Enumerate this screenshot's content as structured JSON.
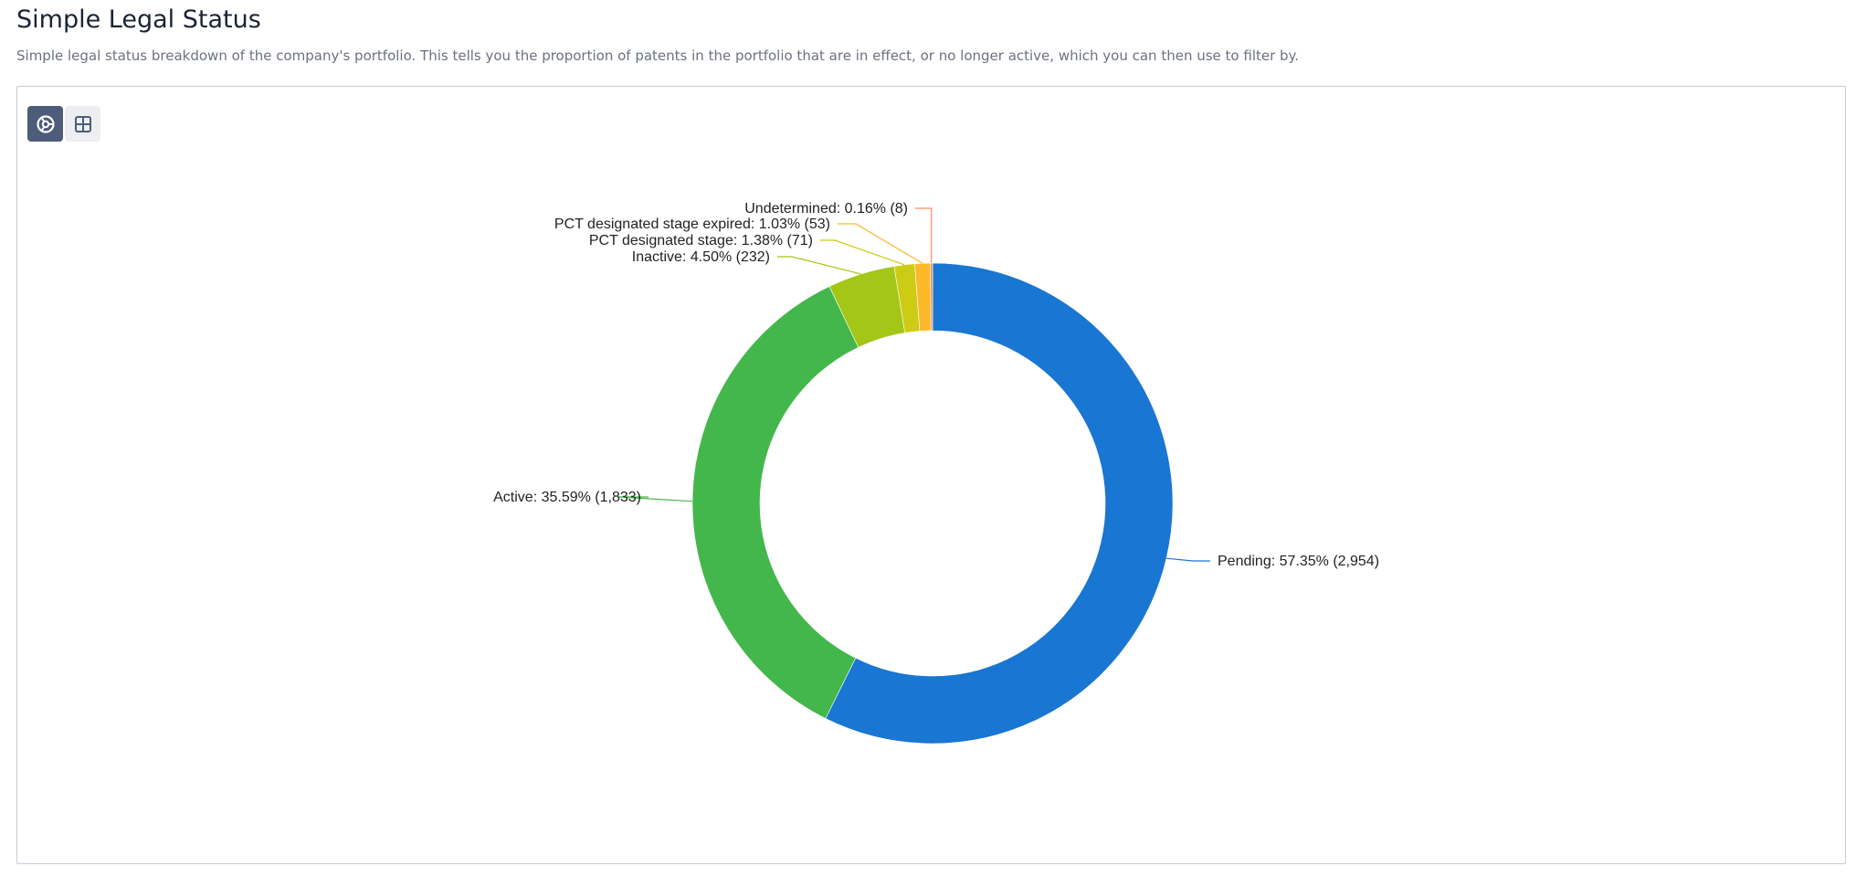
{
  "header": {
    "title": "Simple Legal Status",
    "subtitle": "Simple legal status breakdown of the company's portfolio. This tells you the proportion of patents in the portfolio that are in effect, or no longer active, which you can then use to filter by."
  },
  "view_toggle": {
    "active": "donut",
    "buttons": [
      {
        "name": "donut-view",
        "icon": "donut-chart-icon"
      },
      {
        "name": "table-view",
        "icon": "grid-table-icon"
      }
    ]
  },
  "chart_data": {
    "type": "pie",
    "variant": "donut",
    "start": "top, clockwise",
    "slices": [
      {
        "name": "Pending",
        "percent": 57.35,
        "count": 2954,
        "label": "Pending: 57.35% (2,954)",
        "color": "#1976d2"
      },
      {
        "name": "Active",
        "percent": 35.59,
        "count": 1833,
        "label": "Active: 35.59% (1,833)",
        "color": "#43b74b"
      },
      {
        "name": "Inactive",
        "percent": 4.5,
        "count": 232,
        "label": "Inactive: 4.50% (232)",
        "color": "#a3c617"
      },
      {
        "name": "PCT designated stage",
        "percent": 1.38,
        "count": 71,
        "label": "PCT designated stage: 1.38% (71)",
        "color": "#cdcc14"
      },
      {
        "name": "PCT designated stage expired",
        "percent": 1.03,
        "count": 53,
        "label": "PCT designated stage expired: 1.03% (53)",
        "color": "#fbb829"
      },
      {
        "name": "Undetermined",
        "percent": 0.16,
        "count": 8,
        "label": "Undetermined: 0.16% (8)",
        "color": "#fa8d5e"
      }
    ]
  }
}
